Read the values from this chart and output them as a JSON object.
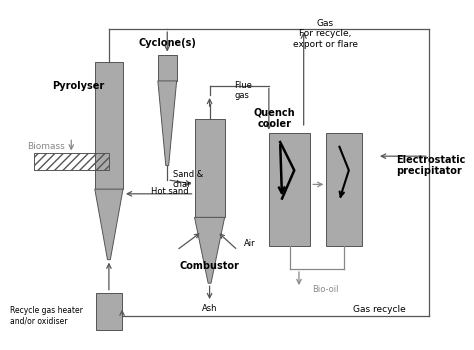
{
  "bg_color": "#ffffff",
  "gray_vessel": "#aaaaaa",
  "gray_dark": "#888888",
  "gray_arrow": "#888888",
  "black": "#000000",
  "lc": "#555555",
  "labels": {
    "pyrolyser": "Pyrolyser",
    "cyclones": "Cyclone(s)",
    "combustor": "Combustor",
    "quench": "Quench\ncooler",
    "electrostatic": "Electrostatic\nprecipitator",
    "biomass": "Biomass",
    "flue_gas": "Flue\ngas",
    "sand_char": "Sand &\nchar",
    "hot_sand": "Hot sand",
    "air": "Air",
    "ash": "Ash",
    "bio_oil": "Bio-oil",
    "gas_recycle": "Gas recycle",
    "recycle_gas": "Recycle gas heater\nand/or oxidiser",
    "gas_export": "Gas\nFor recycle,\nexport or flare"
  }
}
